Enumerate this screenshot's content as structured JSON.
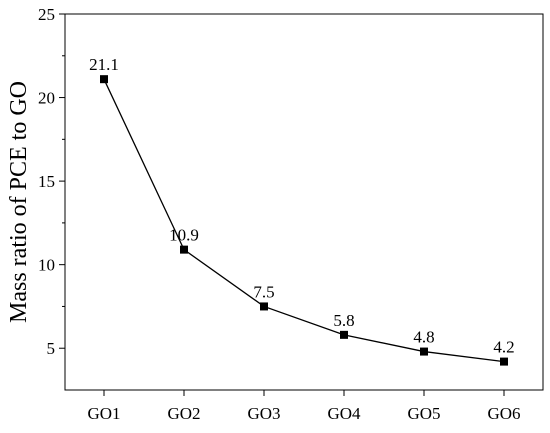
{
  "chart_data": {
    "type": "line",
    "title": "",
    "xlabel": "",
    "ylabel": "Mass ratio of PCE to GO",
    "categories": [
      "GO1",
      "GO2",
      "GO3",
      "GO4",
      "GO5",
      "GO6"
    ],
    "series": [
      {
        "values": [
          21.1,
          10.9,
          7.5,
          5.8,
          4.8,
          4.2
        ],
        "data_labels": [
          "21.1",
          "10.9",
          "7.5",
          "5.8",
          "4.8",
          "4.2"
        ],
        "color": "#000000",
        "marker": "square"
      }
    ],
    "ylim": [
      2.5,
      25
    ],
    "yticks": [
      5,
      10,
      15,
      20,
      25
    ],
    "ytick_labels": [
      "5",
      "10",
      "15",
      "20",
      "25"
    ],
    "grid": false,
    "legend": "none"
  }
}
